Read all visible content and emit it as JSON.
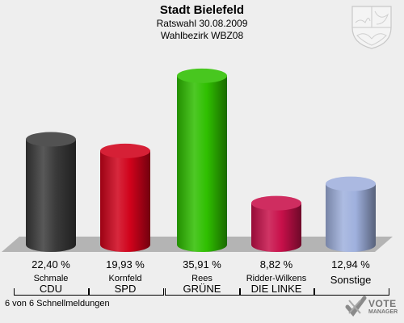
{
  "header": {
    "title": "Stadt Bielefeld",
    "subtitle": "Ratswahl 30.08.2009",
    "subtitle2": "Wahlbezirk WBZ08"
  },
  "chart_data": {
    "type": "bar",
    "categories": [
      "CDU",
      "SPD",
      "GRÜNE",
      "DIE LINKE",
      "Sonstige"
    ],
    "candidates": [
      "Schmale",
      "Kornfeld",
      "Rees",
      "Ridder-Wilkens",
      ""
    ],
    "values": [
      22.4,
      19.93,
      35.91,
      8.82,
      12.94
    ],
    "value_labels": [
      "22,40 %",
      "19,93 %",
      "35,91 %",
      "8,82 %",
      "12,94 %"
    ],
    "colors": [
      "#3a3a3a",
      "#d0021b",
      "#2fbf00",
      "#c8104a",
      "#9fb0dd"
    ],
    "ylim": [
      0,
      40
    ],
    "grid": false
  },
  "footer": {
    "status": "6 von 6 Schnellmeldungen"
  },
  "brand": {
    "name": "VOTE",
    "sub": "MANAGER",
    "icon": "vote-manager-logo-icon"
  },
  "crest": {
    "icon": "nrw-coat-of-arms-icon"
  }
}
